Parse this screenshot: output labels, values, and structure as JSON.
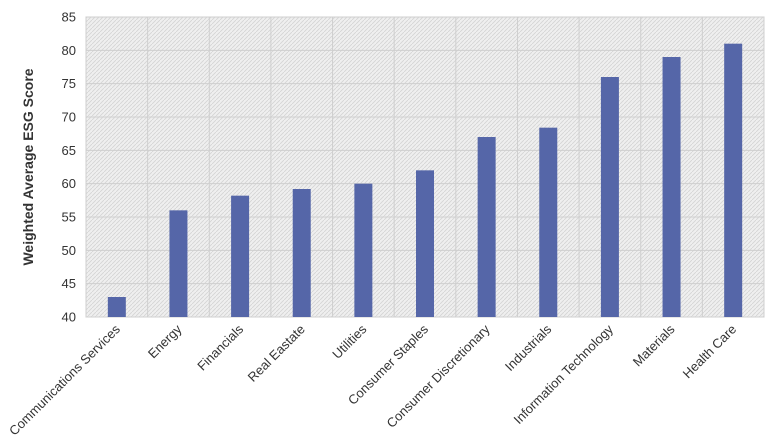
{
  "chart_data": {
    "type": "bar",
    "title": "",
    "xlabel": "",
    "ylabel": "Weighted Average ESG Score",
    "ylim": [
      40,
      85
    ],
    "yticks": [
      40,
      45,
      50,
      55,
      60,
      65,
      70,
      75,
      80,
      85
    ],
    "grid": true,
    "categories": [
      "Communications Services",
      "Energy",
      "Financials",
      "Real Eastate",
      "Utilities",
      "Consumer Staples",
      "Consumer Discretionary",
      "Industrials",
      "Information Technology",
      "Materials",
      "Health Care"
    ],
    "values": [
      43,
      56,
      58.2,
      59.2,
      60,
      62,
      67,
      68.4,
      76,
      79,
      81
    ],
    "colors": {
      "bar": "#5566a8",
      "plot_background": "#ececec",
      "grid": "#cfcfcf"
    }
  }
}
